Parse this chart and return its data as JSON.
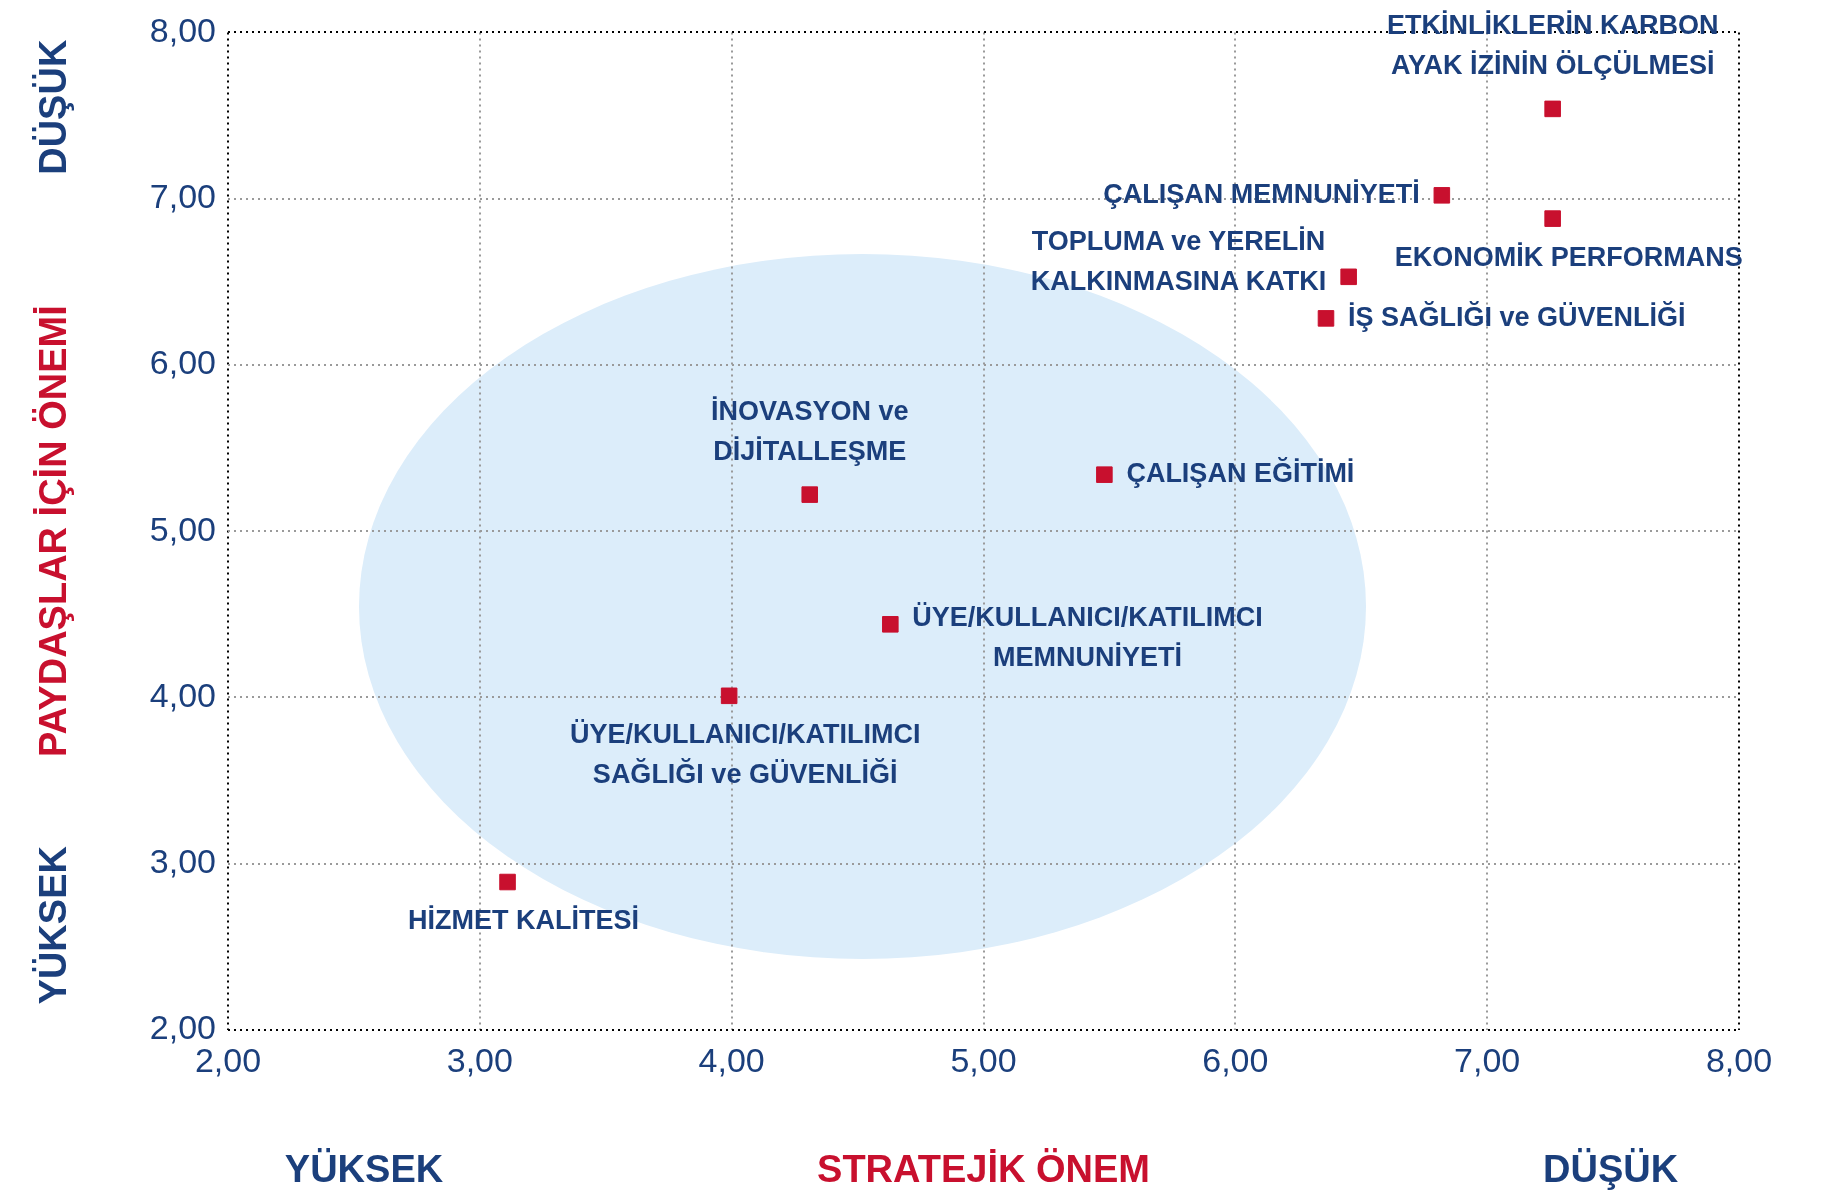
{
  "chart_data": {
    "type": "scatter",
    "xlabel": "STRATEJİK ÖNEM",
    "ylabel": "PAYDAŞLAR İÇİN ÖNEMİ",
    "annotations": [
      "YÜKSEK",
      "DÜŞÜK",
      "YÜKSEK",
      "DÜŞÜK"
    ],
    "xlim": [
      2,
      8
    ],
    "ylim": [
      2,
      8
    ],
    "xticks": [
      {
        "value": 2,
        "label": "2,00"
      },
      {
        "value": 3,
        "label": "3,00"
      },
      {
        "value": 4,
        "label": "4,00"
      },
      {
        "value": 5,
        "label": "5,00"
      },
      {
        "value": 6,
        "label": "6,00"
      },
      {
        "value": 7,
        "label": "7,00"
      },
      {
        "value": 8,
        "label": "8,00"
      }
    ],
    "yticks": [
      {
        "value": 2,
        "label": "2,00"
      },
      {
        "value": 3,
        "label": "3,00"
      },
      {
        "value": 4,
        "label": "4,00"
      },
      {
        "value": 5,
        "label": "5,00"
      },
      {
        "value": 6,
        "label": "6,00"
      },
      {
        "value": 7,
        "label": "7,00"
      },
      {
        "value": 8,
        "label": "8,00"
      }
    ],
    "grid": true,
    "legend": false,
    "marker": "square",
    "series": [
      {
        "name": "ETKİNLİKLERİN KARBON AYAK İZİNİN ÖLÇÜLMESİ",
        "color": "#c8102e",
        "x": [
          7.26
        ],
        "values": [
          7.54
        ]
      },
      {
        "name": "ÇALIŞAN MEMNUNİYETİ",
        "color": "#c8102e",
        "x": [
          6.82
        ],
        "values": [
          7.02
        ]
      },
      {
        "name": "EKONOMİK PERFORMANS",
        "color": "#c8102e",
        "x": [
          7.26
        ],
        "values": [
          6.88
        ]
      },
      {
        "name": "TOPLUMA ve YERELİN KALKINMASINA KATKI",
        "color": "#c8102e",
        "x": [
          6.45
        ],
        "values": [
          6.53
        ]
      },
      {
        "name": "İŞ SAĞLIĞI ve GÜVENLİĞİ",
        "color": "#c8102e",
        "x": [
          6.36
        ],
        "values": [
          6.28
        ]
      },
      {
        "name": "İNOVASYON ve DİJİTALLEŞME",
        "color": "#c8102e",
        "x": [
          4.31
        ],
        "values": [
          5.22
        ]
      },
      {
        "name": "ÇALIŞAN EĞİTİMİ",
        "color": "#c8102e",
        "x": [
          5.48
        ],
        "values": [
          5.34
        ]
      },
      {
        "name": "ÜYE/KULLANICI/KATILIMCI MEMNUNİYETİ",
        "color": "#c8102e",
        "x": [
          4.63
        ],
        "values": [
          4.44
        ]
      },
      {
        "name": "ÜYE/KULLANICI/KATILIMCI SAĞLIĞI ve GÜVENLİĞİ",
        "color": "#c8102e",
        "x": [
          3.99
        ],
        "values": [
          4.01
        ]
      },
      {
        "name": "HİZMET KALİTESİ",
        "color": "#c8102e",
        "x": [
          3.11
        ],
        "values": [
          2.89
        ]
      }
    ]
  }
}
